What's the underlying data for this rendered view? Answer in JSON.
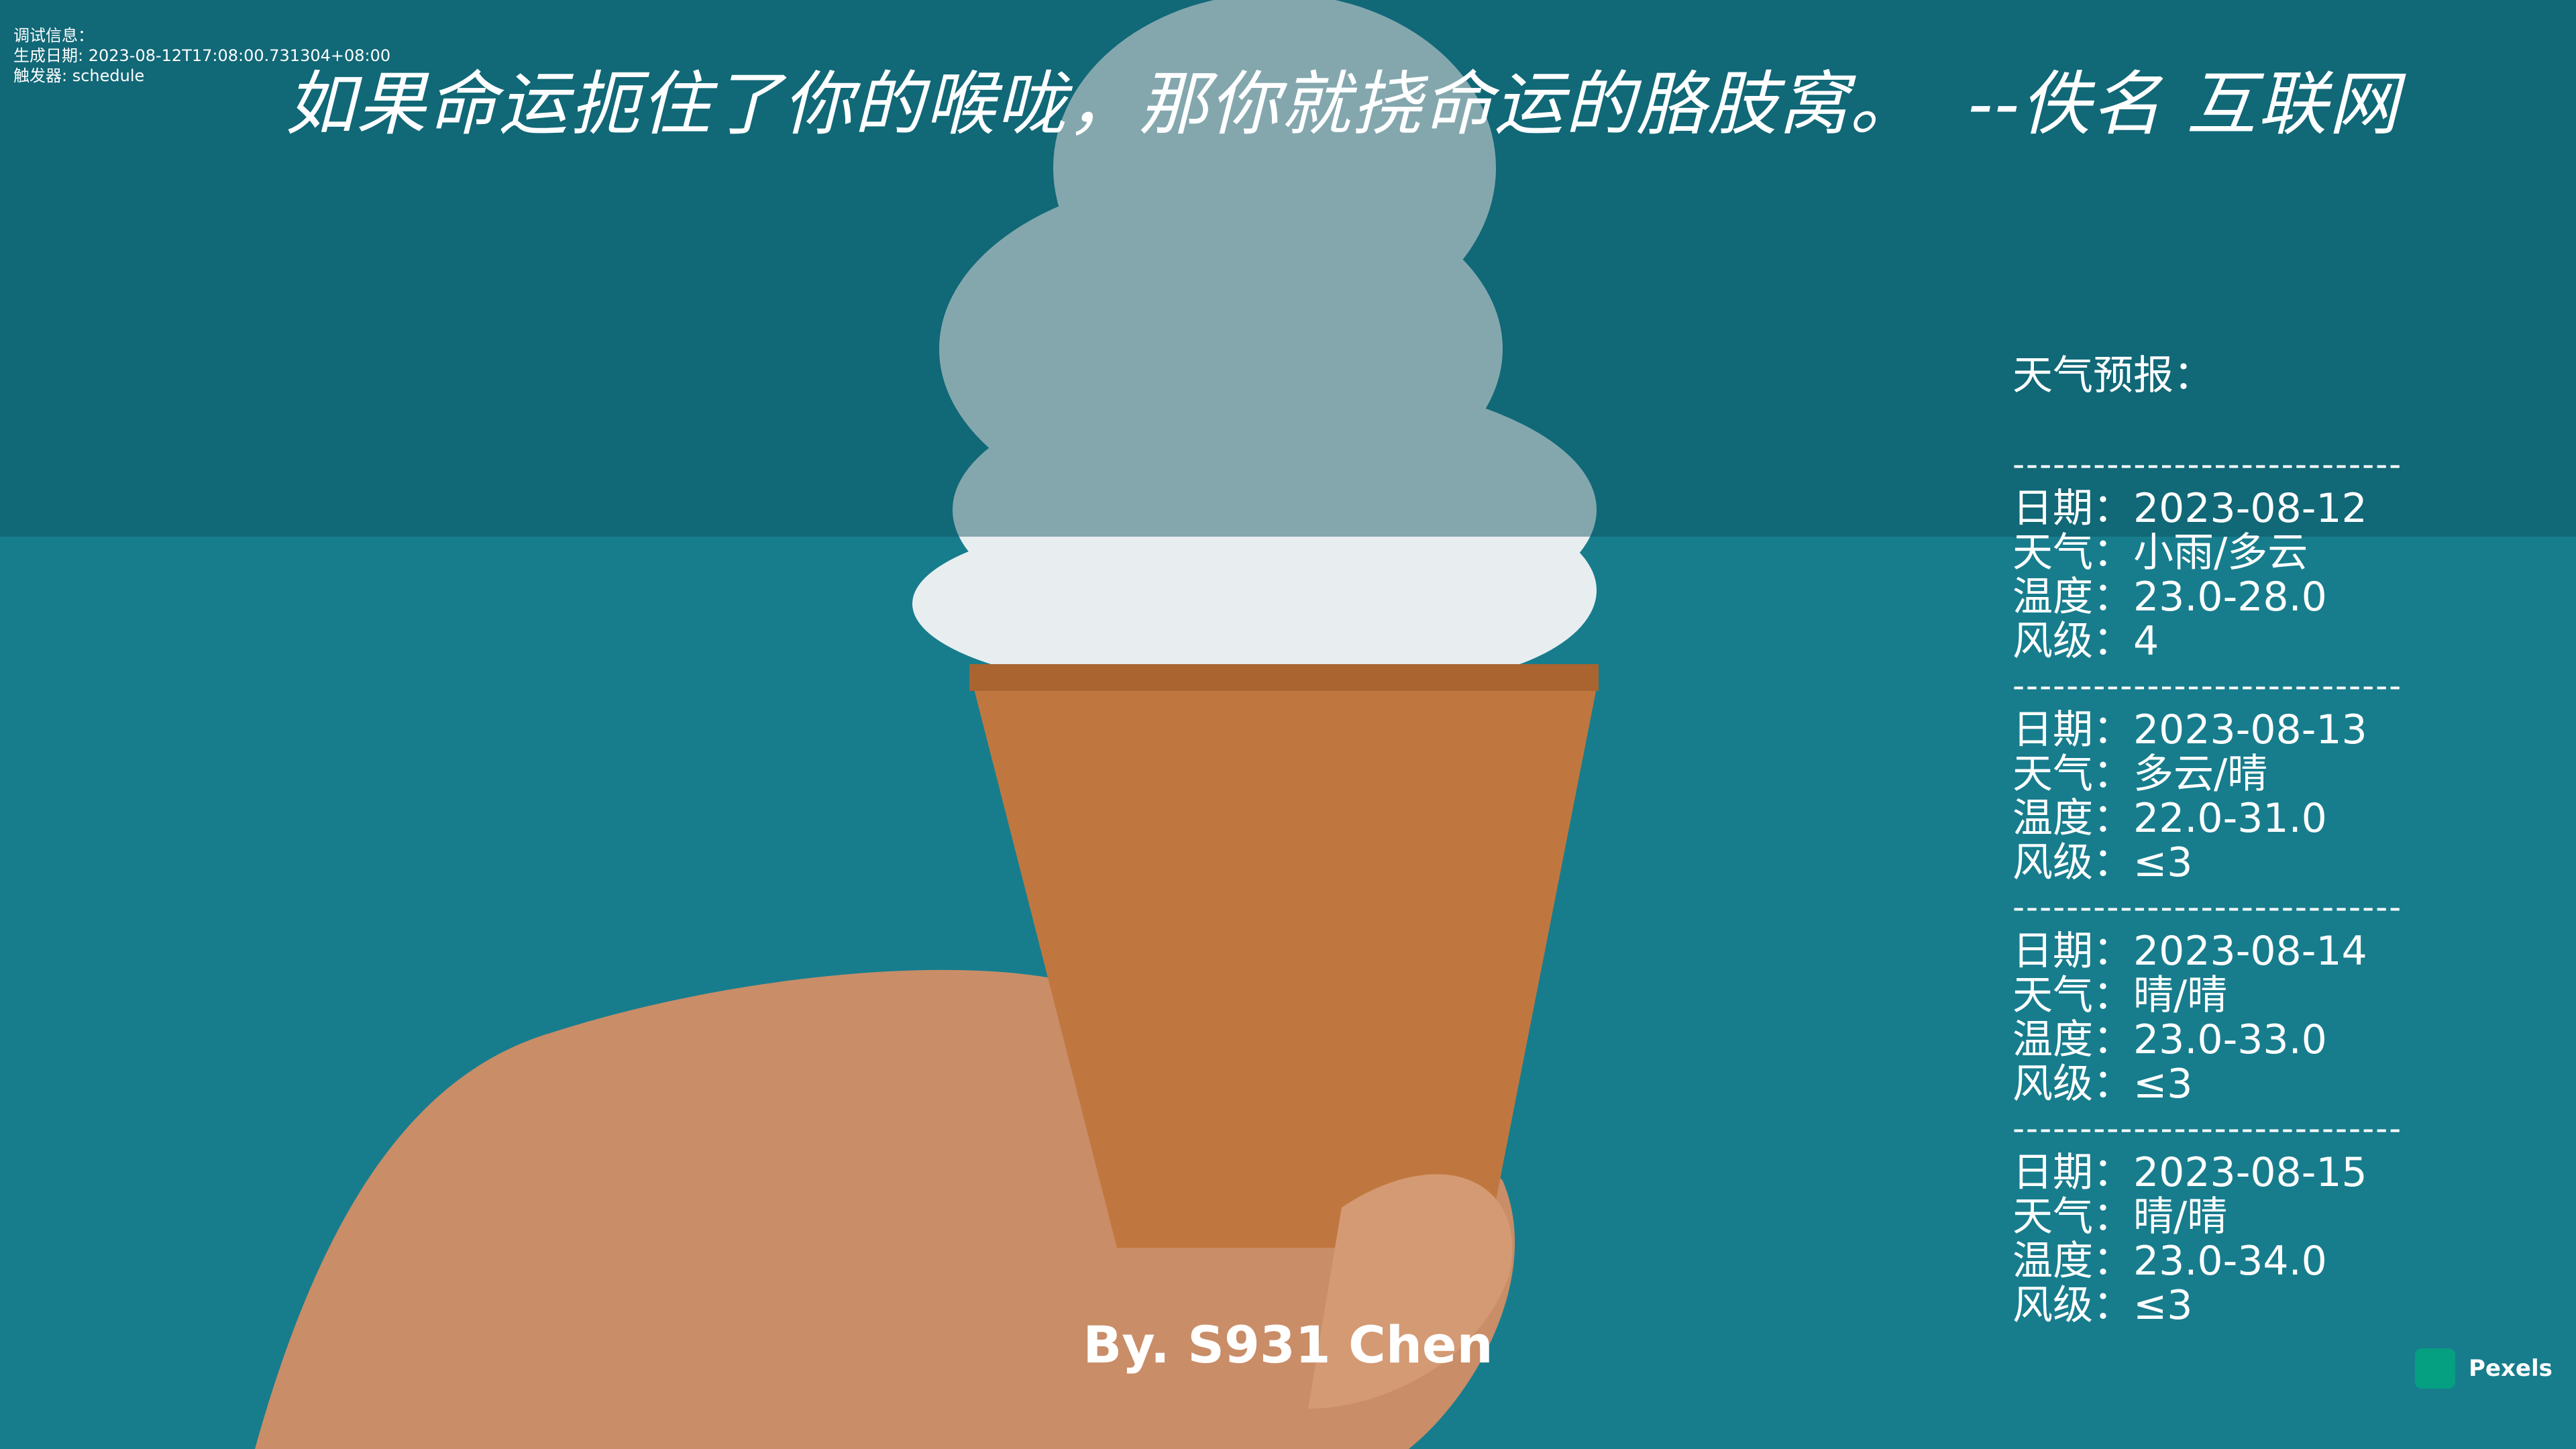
{
  "debug": [
    "调试信息：",
    "生成日期: 2023-08-12T17:08:00.731304+08:00",
    "触发器: schedule"
  ],
  "quote": "如果命运扼住了你的喉咙，那你就挠命运的胳肢窝。  --佚名 互联网",
  "weather": {
    "title": "天气预报：",
    "separator": "-----------------------------",
    "days": [
      [
        "日期：2023-08-12",
        "天气：小雨/多云",
        "温度：23.0-28.0",
        "风级：4"
      ],
      [
        "日期：2023-08-13",
        "天气：多云/晴",
        "温度：22.0-31.0",
        "风级：≤3"
      ],
      [
        "日期：2023-08-14",
        "天气：晴/晴",
        "温度：23.0-33.0",
        "风级：≤3"
      ],
      [
        "日期：2023-08-15",
        "天气：晴/晴",
        "温度：23.0-34.0",
        "风级：≤3"
      ]
    ]
  },
  "credit": "By. S931 Chen",
  "watermark": "Pexels"
}
